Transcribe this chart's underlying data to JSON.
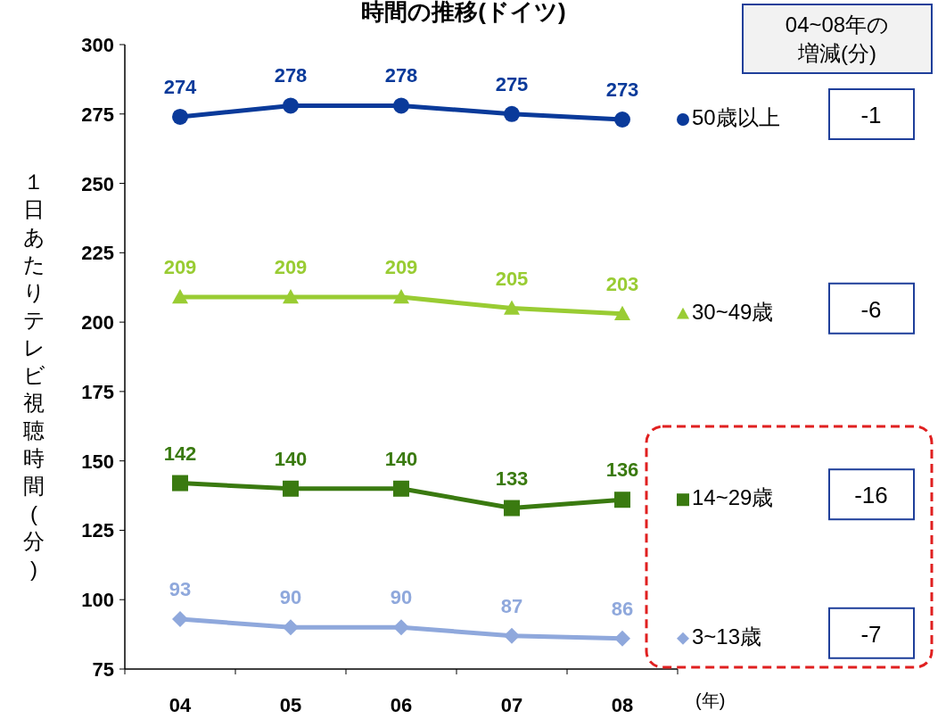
{
  "chart_data": {
    "type": "line",
    "title": "時間の推移(ドイツ)",
    "ylabel": "１日あたりテレビ視聴時間(分)",
    "xlabel": "(年)",
    "categories": [
      "04",
      "05",
      "06",
      "07",
      "08"
    ],
    "series": [
      {
        "name": "50歳以上",
        "color": "#0a3a9a",
        "marker": "circle",
        "values": [
          274,
          278,
          278,
          275,
          273
        ]
      },
      {
        "name": "30~49歳",
        "color": "#99cc33",
        "marker": "triangle",
        "values": [
          209,
          209,
          209,
          205,
          203
        ]
      },
      {
        "name": "14~29歳",
        "color": "#3a7a10",
        "marker": "square",
        "values": [
          142,
          140,
          140,
          133,
          136
        ]
      },
      {
        "name": "3~13歳",
        "color": "#8fa8dc",
        "marker": "diamond",
        "values": [
          93,
          90,
          90,
          87,
          86
        ]
      }
    ],
    "ylim": [
      75,
      300
    ],
    "yticks": [
      75,
      100,
      125,
      150,
      175,
      200,
      225,
      250,
      275,
      300
    ],
    "data_labels": true,
    "legend": "right",
    "grid": false,
    "annotations": [
      "04~08年の",
      "増減(分)",
      "-1",
      "-6",
      "-16",
      "-7"
    ]
  }
}
